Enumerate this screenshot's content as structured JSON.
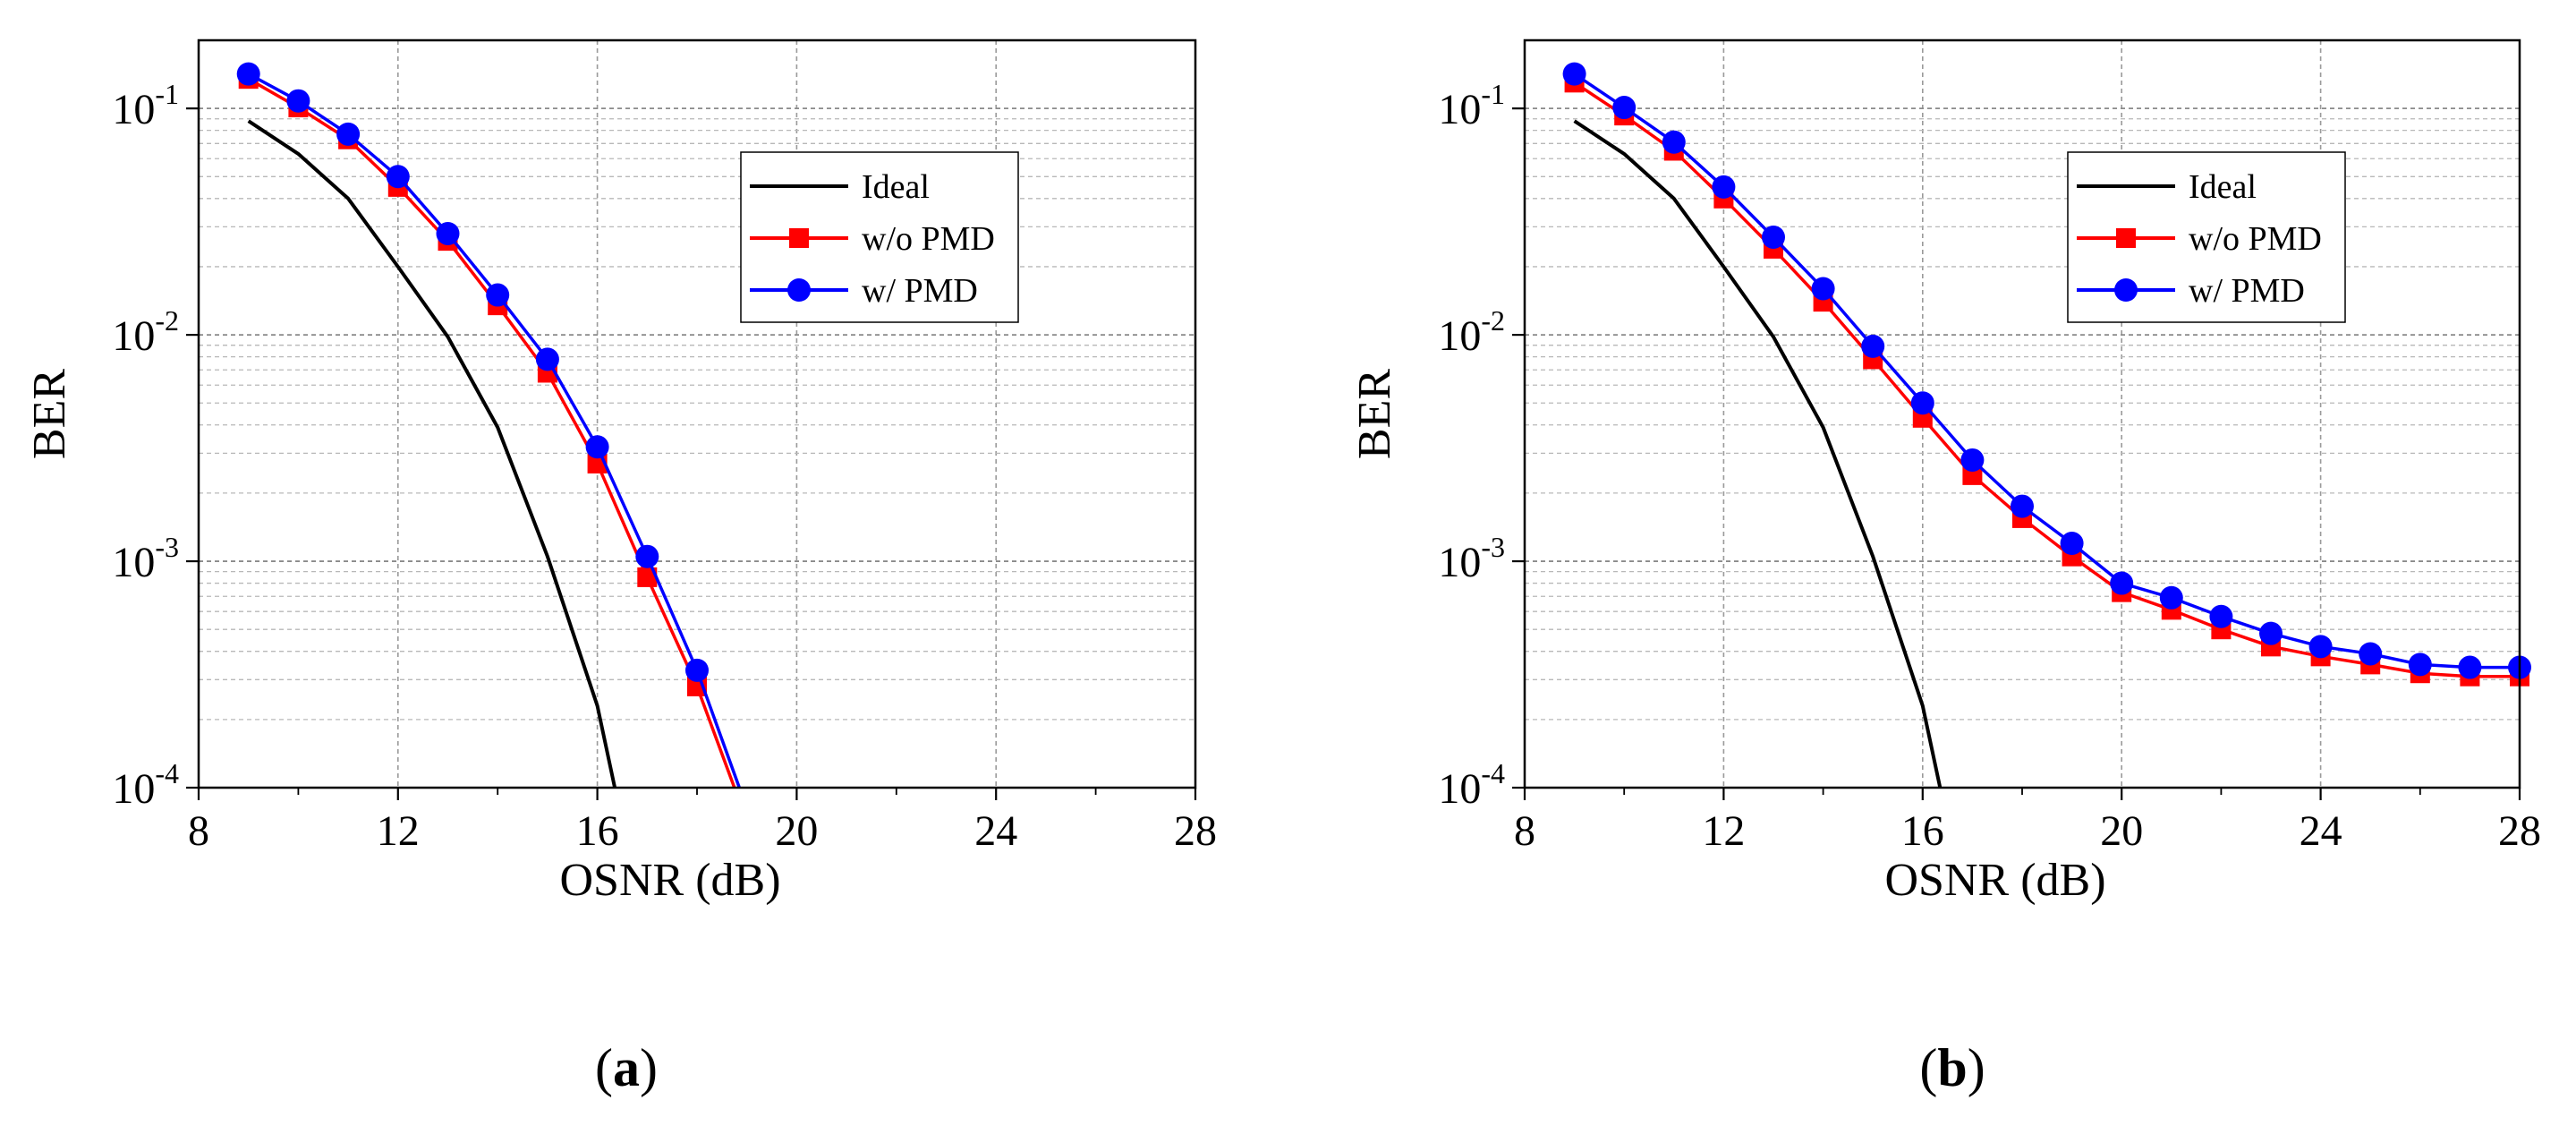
{
  "chart_data": [
    {
      "type": "line",
      "id": "a",
      "panel_label": "a",
      "title": "",
      "xlabel": "OSNR (dB)",
      "ylabel": "BER",
      "xscale": "linear",
      "yscale": "log",
      "xlim": [
        8,
        28
      ],
      "ylim": [
        0.0001,
        0.2
      ],
      "xticks": [
        8,
        12,
        16,
        20,
        24,
        28
      ],
      "xtick_labels": [
        "8",
        "12",
        "16",
        "20",
        "24",
        "28"
      ],
      "yticks": [
        0.1,
        0.01,
        0.001,
        0.0001
      ],
      "ytick_labels": [
        {
          "base": "10",
          "exp": "-1"
        },
        {
          "base": "10",
          "exp": "-2"
        },
        {
          "base": "10",
          "exp": "-3"
        },
        {
          "base": "10",
          "exp": "-4"
        }
      ],
      "grid": true,
      "legend_position": "top-right",
      "series": [
        {
          "name": "Ideal",
          "color": "#000000",
          "marker": "none",
          "x": [
            9,
            10,
            11,
            12,
            13,
            14,
            15,
            16,
            16.35
          ],
          "y": [
            0.088,
            0.063,
            0.04,
            0.02,
            0.0098,
            0.0039,
            0.00105,
            0.00023,
            0.0001
          ]
        },
        {
          "name": "w/o PMD",
          "color": "#ff0000",
          "marker": "square",
          "x": [
            9,
            10,
            11,
            12,
            13,
            14,
            15,
            16,
            17,
            18,
            18.75
          ],
          "y": [
            0.135,
            0.101,
            0.073,
            0.045,
            0.026,
            0.0135,
            0.0068,
            0.0027,
            0.00085,
            0.00028,
            0.0001
          ],
          "marker_count": 10
        },
        {
          "name": "w/ PMD",
          "color": "#0000ff",
          "marker": "circle",
          "x": [
            9,
            10,
            11,
            12,
            13,
            14,
            15,
            16,
            17,
            18,
            18.85
          ],
          "y": [
            0.142,
            0.108,
            0.077,
            0.05,
            0.028,
            0.015,
            0.0078,
            0.0032,
            0.00105,
            0.00033,
            0.0001
          ],
          "marker_count": 10
        }
      ]
    },
    {
      "type": "line",
      "id": "b",
      "panel_label": "b",
      "title": "",
      "xlabel": "OSNR (dB)",
      "ylabel": "BER",
      "xscale": "linear",
      "yscale": "log",
      "xlim": [
        8,
        28
      ],
      "ylim": [
        0.0001,
        0.2
      ],
      "xticks": [
        8,
        12,
        16,
        20,
        24,
        28
      ],
      "xtick_labels": [
        "8",
        "12",
        "16",
        "20",
        "24",
        "28"
      ],
      "yticks": [
        0.1,
        0.01,
        0.001,
        0.0001
      ],
      "ytick_labels": [
        {
          "base": "10",
          "exp": "-1"
        },
        {
          "base": "10",
          "exp": "-2"
        },
        {
          "base": "10",
          "exp": "-3"
        },
        {
          "base": "10",
          "exp": "-4"
        }
      ],
      "grid": true,
      "legend_position": "top-right",
      "series": [
        {
          "name": "Ideal",
          "color": "#000000",
          "marker": "none",
          "x": [
            9,
            10,
            11,
            12,
            13,
            14,
            15,
            16,
            16.35
          ],
          "y": [
            0.088,
            0.063,
            0.04,
            0.02,
            0.0098,
            0.0039,
            0.00105,
            0.00023,
            0.0001
          ]
        },
        {
          "name": "w/o PMD",
          "color": "#ff0000",
          "marker": "square",
          "x": [
            9,
            10,
            11,
            12,
            13,
            14,
            15,
            16,
            17,
            18,
            19,
            20,
            21,
            22,
            23,
            24,
            25,
            26,
            27,
            28
          ],
          "y": [
            0.13,
            0.093,
            0.065,
            0.04,
            0.024,
            0.014,
            0.0078,
            0.0043,
            0.0024,
            0.00155,
            0.00105,
            0.00073,
            0.00061,
            0.0005,
            0.00042,
            0.00038,
            0.00035,
            0.00032,
            0.00031,
            0.00031
          ]
        },
        {
          "name": "w/ PMD",
          "color": "#0000ff",
          "marker": "circle",
          "x": [
            9,
            10,
            11,
            12,
            13,
            14,
            15,
            16,
            17,
            18,
            19,
            20,
            21,
            22,
            23,
            24,
            25,
            26,
            27,
            28
          ],
          "y": [
            0.142,
            0.101,
            0.071,
            0.045,
            0.027,
            0.016,
            0.0089,
            0.005,
            0.0028,
            0.00175,
            0.0012,
            0.0008,
            0.00069,
            0.00057,
            0.00048,
            0.00042,
            0.00039,
            0.00035,
            0.00034,
            0.00034
          ]
        }
      ]
    }
  ]
}
